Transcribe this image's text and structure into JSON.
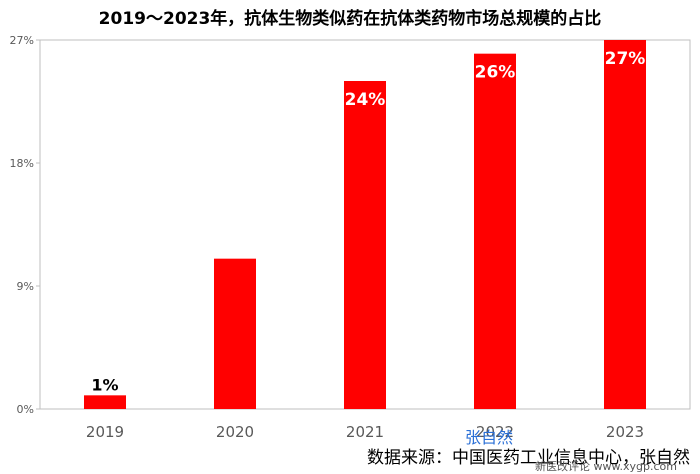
{
  "chart_data": {
    "type": "bar",
    "title": "2019～2023年，抗体生物类似药在抗体类药物市场总规模的占比",
    "categories": [
      "2019",
      "2020",
      "2021",
      "2022",
      "2023"
    ],
    "values": [
      1,
      11,
      24,
      26,
      27
    ],
    "data_labels": [
      "1%",
      "",
      "24%",
      "26%",
      "27%"
    ],
    "ylim": [
      0,
      27
    ],
    "yticks": [
      "0%",
      "9%",
      "18%",
      "27%"
    ],
    "ytick_values": [
      0,
      9,
      18,
      27
    ],
    "grid": false,
    "bar_color": "#ff0000",
    "source": "数据来源：中国医药工业信息中心，张自然"
  },
  "watermark": {
    "name": "张自然",
    "site": "新医改评论 www.xygp.com"
  }
}
